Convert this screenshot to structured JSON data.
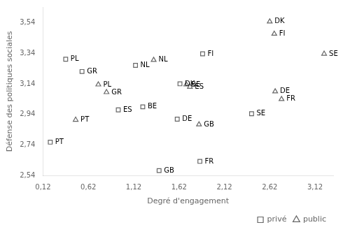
{
  "chart_data": {
    "type": "scatter",
    "xlabel": "Degré d'engagement",
    "ylabel": "Défense des politiques sociales",
    "xlim": [
      0.12,
      3.32
    ],
    "ylim": [
      2.54,
      3.64
    ],
    "xticks": [
      {
        "value": 0.12,
        "label": "0,12"
      },
      {
        "value": 0.62,
        "label": "0,62"
      },
      {
        "value": 1.12,
        "label": "1,12"
      },
      {
        "value": 1.62,
        "label": "1,62"
      },
      {
        "value": 2.12,
        "label": "2,12"
      },
      {
        "value": 2.62,
        "label": "2,62"
      },
      {
        "value": 3.12,
        "label": "3,12"
      }
    ],
    "yticks": [
      {
        "value": 2.54,
        "label": "2,54"
      },
      {
        "value": 2.74,
        "label": "2,74"
      },
      {
        "value": 2.94,
        "label": "2,94"
      },
      {
        "value": 3.14,
        "label": "3,14"
      },
      {
        "value": 3.34,
        "label": "3,34"
      },
      {
        "value": 3.54,
        "label": "3,54"
      }
    ],
    "grid": false,
    "legend": "lower right",
    "series": [
      {
        "name": "privé",
        "marker": "square",
        "color": "#666666",
        "x": [
          0.2,
          0.37,
          0.55,
          0.95,
          1.14,
          1.22,
          1.6,
          1.63,
          1.88,
          2.42,
          1.85,
          1.4
        ],
        "values": [
          2.76,
          3.3,
          3.22,
          2.97,
          3.26,
          2.99,
          2.91,
          3.14,
          3.335,
          2.945,
          2.635,
          2.575
        ],
        "labels": [
          "PT",
          "PL",
          "GR",
          "ES",
          "NL",
          "BE",
          "DE",
          "DK",
          "FI",
          "SE",
          "FR",
          "GB"
        ]
      },
      {
        "name": "public",
        "marker": "triangle",
        "color": "#666666",
        "x": [
          0.48,
          0.73,
          0.82,
          1.34,
          1.7,
          1.74,
          1.84,
          2.62,
          2.67,
          2.68,
          2.75,
          3.22
        ],
        "values": [
          2.905,
          3.135,
          3.085,
          3.295,
          3.135,
          3.12,
          2.875,
          3.545,
          3.465,
          3.09,
          3.04,
          3.335
        ],
        "labels": [
          "PT",
          "PL",
          "GR",
          "NL",
          "BE",
          "ES",
          "GB",
          "DK",
          "FI",
          "DE",
          "FR",
          "SE"
        ]
      }
    ]
  }
}
